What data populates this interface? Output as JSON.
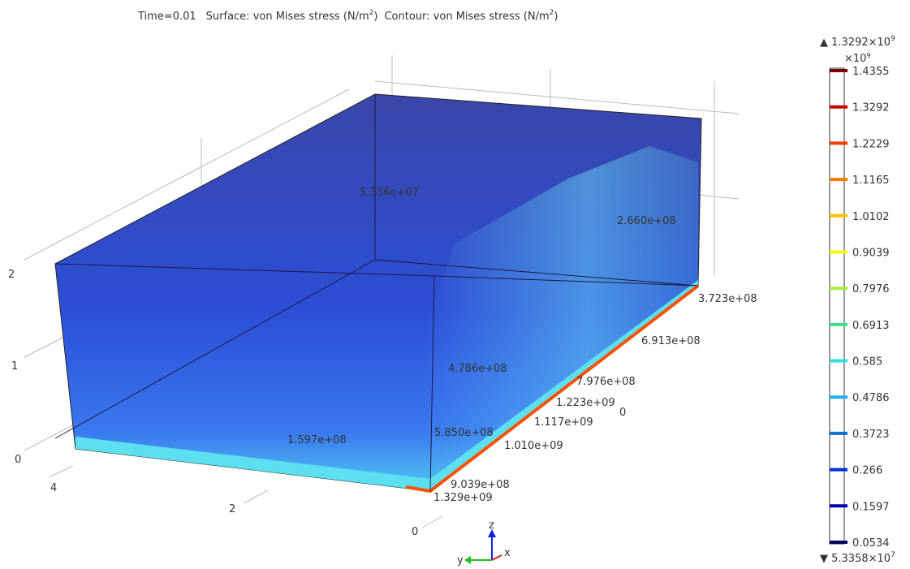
{
  "title": {
    "time": "Time=0.01",
    "surface": "Surface: von Mises stress (N/m",
    "surface_sup": "2",
    "surface_end": ")",
    "contour": "Contour: von Mises stress (N/m",
    "contour_sup": "2",
    "contour_end": ")"
  },
  "axes": {
    "z_ticks": [
      "2",
      "1",
      "0"
    ],
    "y_ticks": [
      "4",
      "2",
      "0"
    ],
    "x_ticks": [
      "0"
    ],
    "triad": [
      "z",
      "y",
      "x"
    ]
  },
  "contour_labels": [
    "5.336e+07",
    "2.660e+08",
    "3.723e+08",
    "6.913e+08",
    "4.786e+08",
    "7.976e+08",
    "1.223e+09",
    "1.117e+09",
    "5.850e+08",
    "1.597e+08",
    "1.010e+09",
    "9.039e+08",
    "1.329e+09"
  ],
  "legend": {
    "max_label": "▲ 1.3292×10",
    "max_exp": "9",
    "scale": "×10",
    "scale_exp": "9",
    "min_label": "▼ 5.3358×10",
    "min_exp": "7",
    "levels": [
      1.4355,
      1.3292,
      1.2229,
      1.1165,
      1.0102,
      0.9039,
      0.7976,
      0.6913,
      0.585,
      0.4786,
      0.3723,
      0.266,
      0.1597,
      0.0534
    ],
    "colors": [
      "#7a0000",
      "#c80000",
      "#f03a00",
      "#ff7a00",
      "#ffc000",
      "#f8f800",
      "#a8f040",
      "#40e090",
      "#30e0e0",
      "#20b0f0",
      "#1070d0",
      "#0030e0",
      "#0000b0",
      "#000060"
    ]
  }
}
